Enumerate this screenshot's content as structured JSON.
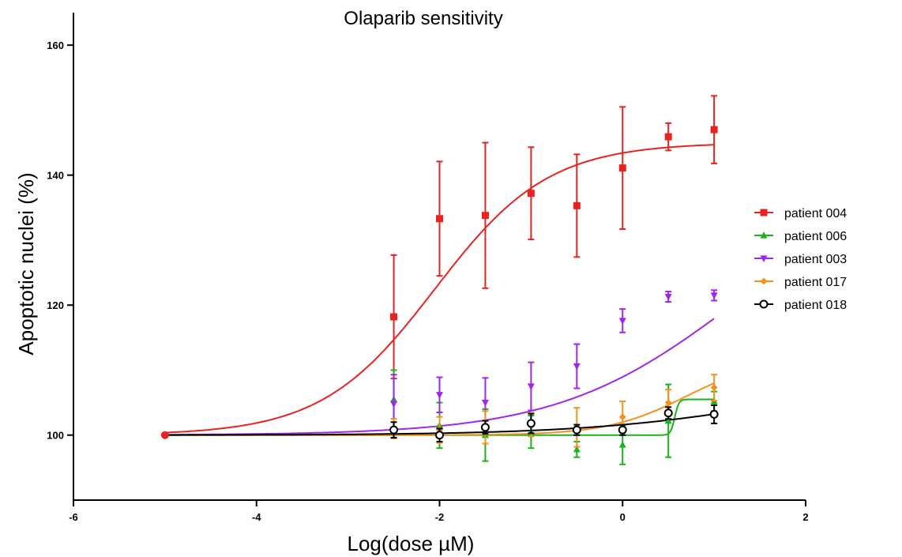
{
  "chart_data": {
    "type": "scatter",
    "title": "Olaparib sensitivity",
    "xlabel": "Log(dose µM)",
    "ylabel": "Apoptotic nuclei (%)",
    "xlim": [
      -6,
      2
    ],
    "ylim": [
      90,
      165
    ],
    "xticks": [
      "-6",
      "-4",
      "-2",
      "0",
      "2"
    ],
    "xtick_values": [
      -6,
      -4,
      -2,
      0,
      2
    ],
    "yticks": [
      "100",
      "120",
      "140",
      "160"
    ],
    "ytick_values": [
      100,
      120,
      140,
      160
    ],
    "legend_position": "right",
    "grid": false,
    "control_point": {
      "x": -5,
      "y": 100,
      "color": "#e8231f"
    },
    "series": [
      {
        "name": "patient 004",
        "color": "#e8231f",
        "marker": "square",
        "x": [
          -2.5,
          -2,
          -1.5,
          -1,
          -0.5,
          0,
          0.5,
          1
        ],
        "y": [
          118.2,
          133.3,
          133.8,
          137.2,
          135.3,
          141.1,
          145.9,
          147.0
        ],
        "err": [
          9.5,
          8.8,
          11.2,
          7.1,
          7.9,
          9.4,
          2.1,
          5.2
        ],
        "fit": {
          "bottom": 100,
          "top": 145,
          "logec50": -2.05,
          "hill": 0.7
        }
      },
      {
        "name": "patient 006",
        "color": "#1bb31b",
        "marker": "triangle-up",
        "x": [
          -2.5,
          -2,
          -1.5,
          -1,
          -0.5,
          0,
          0.5,
          1
        ],
        "y": [
          105.5,
          101.5,
          100.0,
          100.5,
          97.8,
          98.5,
          102.2,
          105.2
        ],
        "err": [
          4.5,
          3.5,
          4.0,
          2.5,
          1.2,
          3.0,
          5.6,
          1.5
        ],
        "fit": {
          "bottom": 100,
          "top": 105.5,
          "logec50": 0.57,
          "hill": 20
        }
      },
      {
        "name": "patient 003",
        "color": "#a324ea",
        "marker": "triangle-down",
        "x": [
          -2.5,
          -2,
          -1.5,
          -1,
          -0.5,
          0,
          0.5,
          1
        ],
        "y": [
          104.8,
          106.2,
          105.0,
          107.5,
          110.6,
          117.6,
          121.3,
          121.5
        ],
        "err": [
          4.5,
          2.7,
          3.8,
          3.7,
          3.4,
          1.8,
          0.8,
          0.8
        ],
        "fit": {
          "bottom": 100,
          "top": 140,
          "logec50": 1.2,
          "hill": 0.45
        }
      },
      {
        "name": "patient 017",
        "color": "#f7901e",
        "marker": "diamond",
        "x": [
          -2.5,
          -2,
          -1.5,
          -1,
          -0.5,
          0,
          0.5,
          1
        ],
        "y": [
          101.0,
          100.8,
          101.2,
          101.6,
          101.2,
          102.8,
          105.0,
          107.3
        ],
        "err": [
          1.5,
          2.0,
          2.5,
          1.8,
          3.0,
          2.4,
          2.0,
          2.0
        ],
        "fit": {
          "bottom": 100,
          "top": 112,
          "logec50": 0.7,
          "hill": 1.0
        }
      },
      {
        "name": "patient 018",
        "color": "#000000",
        "marker": "circle-open",
        "x": [
          -2.5,
          -2,
          -1.5,
          -1,
          -0.5,
          0,
          0.5,
          1
        ],
        "y": [
          100.8,
          100.0,
          101.2,
          101.8,
          100.8,
          100.8,
          103.4,
          103.2
        ],
        "err": [
          1.2,
          1.0,
          1.0,
          1.5,
          0.8,
          0.8,
          0.9,
          1.4
        ],
        "fit": {
          "bottom": 100,
          "top": 110,
          "logec50": 1.8,
          "hill": 0.4
        }
      }
    ]
  }
}
